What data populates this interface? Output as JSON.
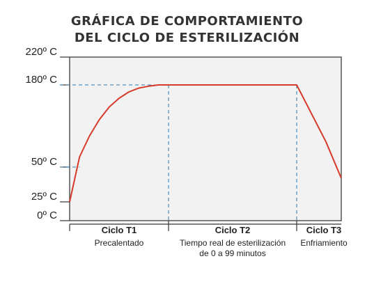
{
  "chart_data": {
    "type": "line",
    "title_line1": "GRÁFICA DE COMPORTAMIENTO",
    "title_line2": "DEL CICLO DE ESTERILIZACIÓN",
    "y_tick_labels": [
      "220º C",
      "180º C",
      "50º C",
      "25º C",
      "0º C"
    ],
    "y_ticks": [
      220,
      180,
      50,
      25,
      0
    ],
    "ylim": [
      0,
      220
    ],
    "phase_boundaries": [
      0,
      1,
      2,
      3
    ],
    "series": [
      {
        "x": [
          0.0,
          0.1,
          0.2,
          0.3,
          0.4,
          0.5,
          0.6,
          0.7,
          0.8,
          0.9,
          1.0,
          1.5,
          2.0,
          2.5,
          2.81
        ],
        "values": [
          25,
          66,
          99,
          125,
          145,
          159,
          169,
          175,
          178,
          180,
          180,
          180,
          180,
          90,
          42
        ],
        "color": "#d63a2a"
      }
    ],
    "reference_lines": [
      {
        "y": 180,
        "x_to": 1.0
      },
      {
        "y": 50,
        "x_to": 0.1
      }
    ],
    "phases": [
      {
        "name": "Ciclo T1",
        "desc": [
          "Precalentado"
        ]
      },
      {
        "name": "Ciclo T2",
        "desc": [
          "Tiempo real de esterilización",
          "de 0 a 99 minutos"
        ]
      },
      {
        "name": "Ciclo T3",
        "desc": [
          "Enfriamiento"
        ]
      }
    ],
    "grid": false,
    "line_color": "#d63a2a",
    "ref_color": "#2a7ab8",
    "plot_bg": "#f2f2f2"
  }
}
